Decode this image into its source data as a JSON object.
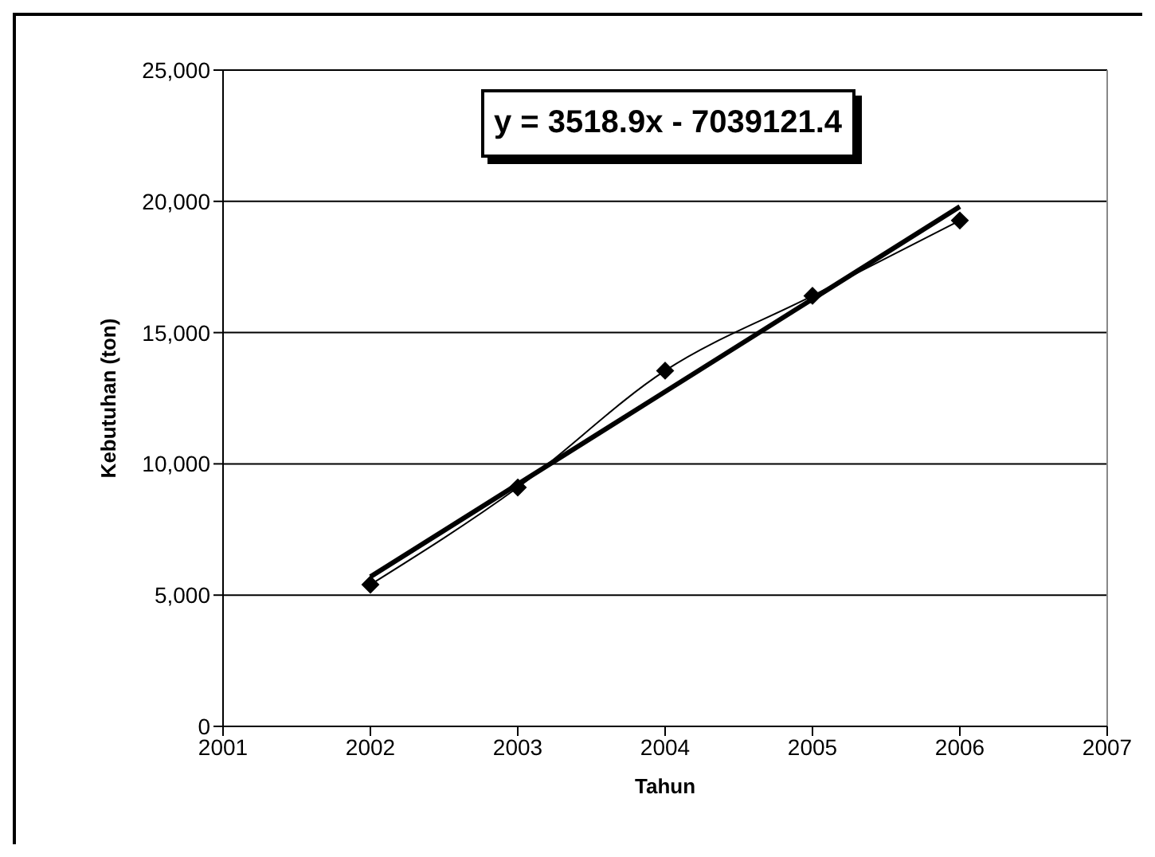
{
  "chart_data": {
    "type": "line",
    "xlabel": "Tahun",
    "ylabel": "Kebutuhan (ton)",
    "xlim": [
      2001,
      2007
    ],
    "xticks": [
      2001,
      2002,
      2003,
      2004,
      2005,
      2006,
      2007
    ],
    "ylim": [
      0,
      25000
    ],
    "yticks": [
      {
        "value": 0,
        "label": "0"
      },
      {
        "value": 5000,
        "label": "5,000"
      },
      {
        "value": 10000,
        "label": "10,000"
      },
      {
        "value": 15000,
        "label": "15,000"
      },
      {
        "value": 20000,
        "label": "20,000"
      },
      {
        "value": 25000,
        "label": "25,000"
      }
    ],
    "grid": "y",
    "series": [
      {
        "color": "#000000",
        "marker": "diamond",
        "x": [
          2002,
          2003,
          2004,
          2005,
          2006
        ],
        "values": [
          5400,
          9100,
          13550,
          16400,
          19270
        ]
      },
      {
        "color": "#000000",
        "marker": "none",
        "x": [
          2002,
          2006
        ],
        "values": [
          5700,
          19800
        ]
      }
    ],
    "annotations": [
      "y = 3518.9x - 7039121.4"
    ]
  }
}
